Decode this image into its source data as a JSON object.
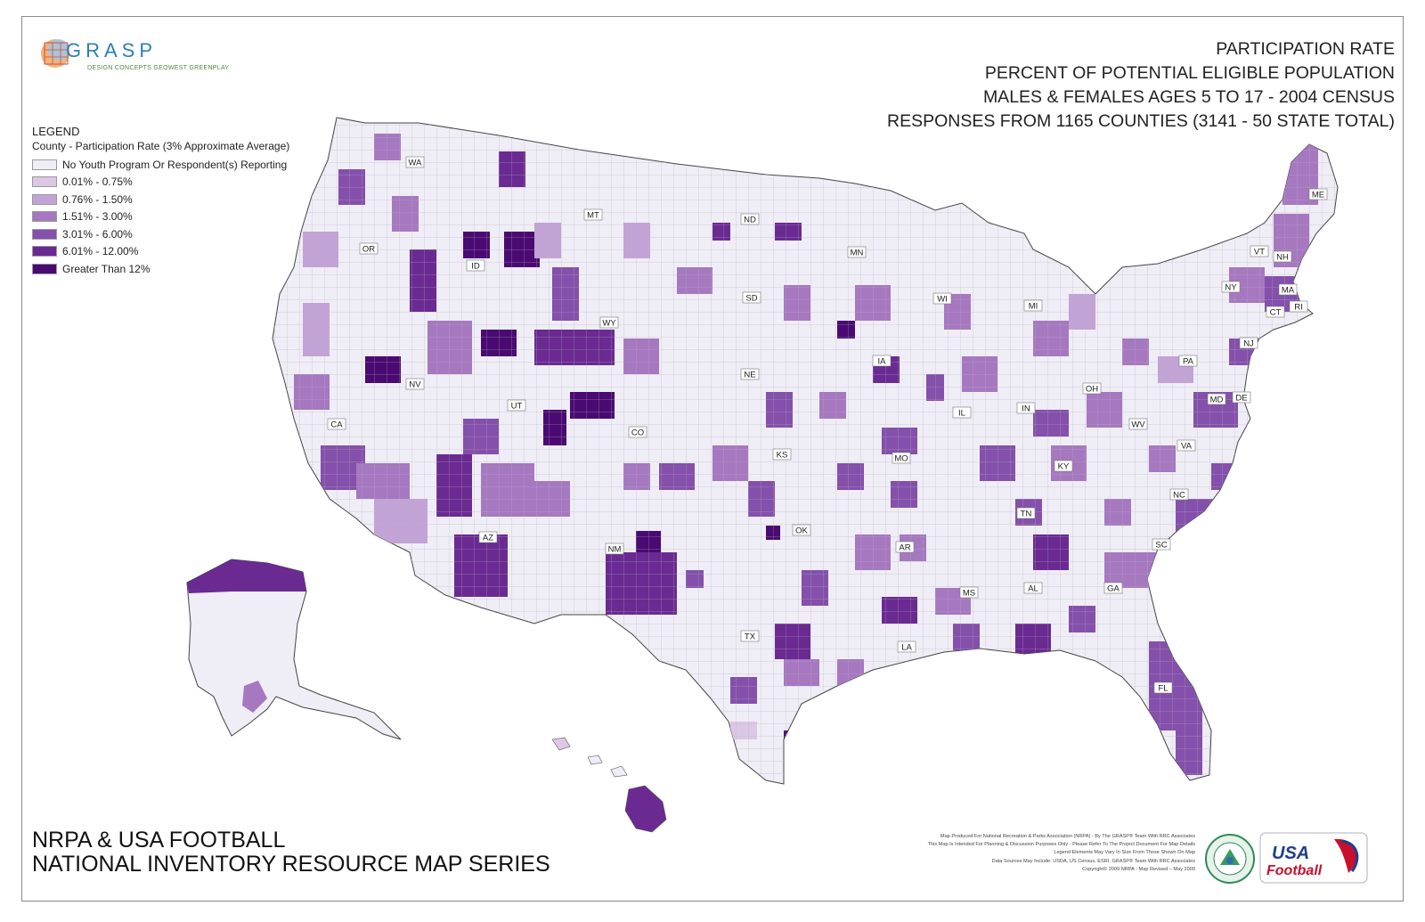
{
  "title_lines": [
    "PARTICIPATION RATE",
    "PERCENT OF POTENTIAL ELIGIBLE POPULATION",
    "MALES & FEMALES AGES 5 TO 17 - 2004 CENSUS",
    "RESPONSES FROM 1165 COUNTIES (3141 - 50 STATE TOTAL)"
  ],
  "logo": {
    "name": "GRASP",
    "tagline": "DESIGN CONCEPTS  GEOWEST  GREENPLAY"
  },
  "legend": {
    "title": "LEGEND",
    "subtitle": "County - Participation Rate (3% Approximate Average)",
    "items": [
      {
        "label": "No Youth Program Or Respondent(s) Reporting",
        "color": "#efedf5"
      },
      {
        "label": "0.01% - 0.75%",
        "color": "#dcc7e6"
      },
      {
        "label": "0.76% - 1.50%",
        "color": "#c3a3d6"
      },
      {
        "label": "1.51% - 3.00%",
        "color": "#a678c0"
      },
      {
        "label": "3.01% - 6.00%",
        "color": "#8450ab"
      },
      {
        "label": "6.01% - 12.00%",
        "color": "#6a2a92"
      },
      {
        "label": "Greater Than 12%",
        "color": "#4a0a72"
      }
    ]
  },
  "state_labels": [
    "WA",
    "OR",
    "CA",
    "ID",
    "NV",
    "MT",
    "WY",
    "UT",
    "AZ",
    "CO",
    "NM",
    "ND",
    "SD",
    "NE",
    "KS",
    "OK",
    "TX",
    "MN",
    "IA",
    "MO",
    "AR",
    "LA",
    "WI",
    "IL",
    "MI",
    "IN",
    "OH",
    "KY",
    "TN",
    "MS",
    "AL",
    "GA",
    "FL",
    "SC",
    "NC",
    "VA",
    "WV",
    "PA",
    "NY",
    "VT",
    "NH",
    "ME",
    "MA",
    "RI",
    "CT",
    "NJ",
    "DE",
    "MD"
  ],
  "series_title": [
    "NRPA & USA FOOTBALL",
    "NATIONAL INVENTORY RESOURCE MAP SERIES"
  ],
  "credits": [
    "Map Produced For National Recreation & Parks Association (NRPA) - By The GRASP® Team With RRC Associates",
    "This Map Is Intended For Planning & Discussion Purposes Only - Please Refer To The Project Document For Map Details",
    "Legend Elements May Vary In Size From Those Shown On Map",
    "Data Sources May Include: USDA, US Census, ESRI, GRASP® Team With RRC Associates",
    "Copyright© 2009 NRPA - Map Revised – May 2009"
  ],
  "usa_football": {
    "line1": "USA",
    "line2": "Football"
  }
}
